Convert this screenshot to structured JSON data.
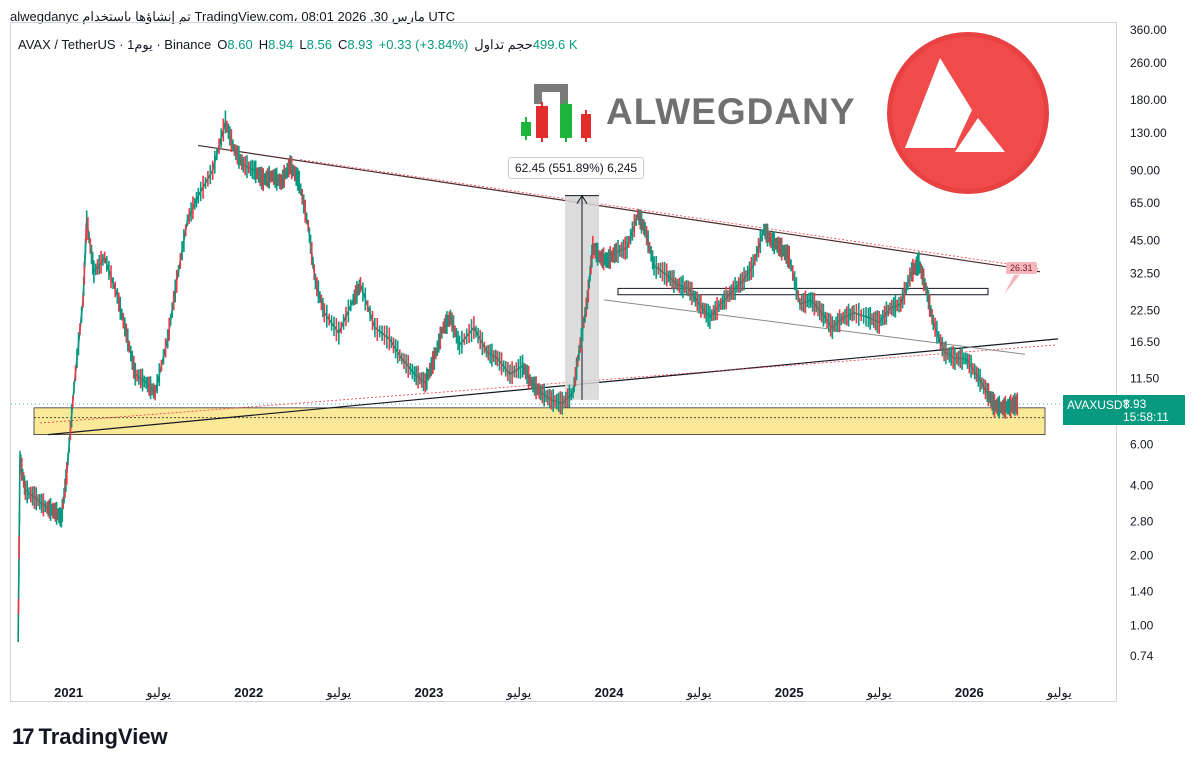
{
  "header": {
    "line": "alwegdanyc تم إنشاؤها باستخدام TradingView.com، 08:01 2026 ,مارس 30 UTC"
  },
  "symbol": {
    "name": "AVAX / TetherUS · 1يوم · Binance",
    "o_label": "O",
    "o": "8.60",
    "h_label": "H",
    "h": "8.94",
    "l_label": "L",
    "l": "8.56",
    "c_label": "C",
    "c": "8.93",
    "change": "+0.33 (+3.84%)",
    "volume_label": "حجم تداول",
    "volume": "499.6 K"
  },
  "brand": {
    "text": "ALWEGDANY"
  },
  "measure": {
    "label": "62.45 (551.89%) 6,245"
  },
  "pink_label": "26.31",
  "price_tag": {
    "name": "AVAXUSDT",
    "value": "8.93",
    "countdown": "15:58:11"
  },
  "footer": {
    "logo_text": "TradingView",
    "logo_mark": "17"
  },
  "colors": {
    "up": "#089981",
    "down": "#f23645",
    "zone": "#fbe99a",
    "measure": "#d6d6d6"
  },
  "chart_data": {
    "type": "line",
    "title": "",
    "xlabel": "",
    "ylabel": "",
    "y_scale": "log",
    "ylim": [
      0.7,
      360
    ],
    "y_ticks": [
      "360.00",
      "260.00",
      "180.00",
      "130.00",
      "90.00",
      "65.00",
      "45.00",
      "32.50",
      "22.50",
      "16.50",
      "11.50",
      "8.00",
      "6.00",
      "4.00",
      "2.80",
      "2.00",
      "1.40",
      "1.00",
      "0.74"
    ],
    "x_ticks": [
      {
        "label": "2021",
        "t": 2021.0,
        "bold": true
      },
      {
        "label": "يوليو",
        "t": 2021.5,
        "bold": false
      },
      {
        "label": "2022",
        "t": 2022.0,
        "bold": true
      },
      {
        "label": "يوليو",
        "t": 2022.5,
        "bold": false
      },
      {
        "label": "2023",
        "t": 2023.0,
        "bold": true
      },
      {
        "label": "يوليو",
        "t": 2023.5,
        "bold": false
      },
      {
        "label": "2024",
        "t": 2024.0,
        "bold": true
      },
      {
        "label": "يوليو",
        "t": 2024.5,
        "bold": false
      },
      {
        "label": "2025",
        "t": 2025.0,
        "bold": true
      },
      {
        "label": "يوليو",
        "t": 2025.5,
        "bold": false
      },
      {
        "label": "2026",
        "t": 2026.0,
        "bold": true
      },
      {
        "label": "يوليو",
        "t": 2026.5,
        "bold": false
      }
    ],
    "xlim": [
      2020.68,
      2026.82
    ],
    "series": [
      {
        "points": [
          [
            2020.72,
            0.9
          ],
          [
            2020.73,
            5.2
          ],
          [
            2020.76,
            3.8
          ],
          [
            2020.82,
            3.5
          ],
          [
            2020.88,
            3.2
          ],
          [
            2020.92,
            3.1
          ],
          [
            2020.96,
            2.9
          ],
          [
            2020.99,
            4.5
          ],
          [
            2021.03,
            10.5
          ],
          [
            2021.08,
            25
          ],
          [
            2021.1,
            55
          ],
          [
            2021.14,
            33
          ],
          [
            2021.2,
            38
          ],
          [
            2021.27,
            26
          ],
          [
            2021.32,
            18
          ],
          [
            2021.37,
            12
          ],
          [
            2021.43,
            11
          ],
          [
            2021.48,
            10
          ],
          [
            2021.55,
            17
          ],
          [
            2021.6,
            30
          ],
          [
            2021.66,
            55
          ],
          [
            2021.72,
            70
          ],
          [
            2021.8,
            90
          ],
          [
            2021.87,
            145
          ],
          [
            2021.92,
            110
          ],
          [
            2021.97,
            95
          ],
          [
            2022.03,
            90
          ],
          [
            2022.08,
            82
          ],
          [
            2022.13,
            85
          ],
          [
            2022.18,
            80
          ],
          [
            2022.23,
            95
          ],
          [
            2022.28,
            80
          ],
          [
            2022.33,
            52
          ],
          [
            2022.37,
            30
          ],
          [
            2022.42,
            22
          ],
          [
            2022.5,
            18
          ],
          [
            2022.58,
            25
          ],
          [
            2022.62,
            29
          ],
          [
            2022.7,
            19
          ],
          [
            2022.78,
            17
          ],
          [
            2022.85,
            14
          ],
          [
            2022.92,
            12
          ],
          [
            2022.98,
            11
          ],
          [
            2023.03,
            14
          ],
          [
            2023.08,
            19
          ],
          [
            2023.12,
            21
          ],
          [
            2023.17,
            16
          ],
          [
            2023.25,
            19
          ],
          [
            2023.32,
            15
          ],
          [
            2023.38,
            14
          ],
          [
            2023.45,
            12
          ],
          [
            2023.52,
            13
          ],
          [
            2023.57,
            11
          ],
          [
            2023.62,
            10
          ],
          [
            2023.68,
            9.3
          ],
          [
            2023.74,
            9.0
          ],
          [
            2023.8,
            10
          ],
          [
            2023.84,
            16
          ],
          [
            2023.88,
            25
          ],
          [
            2023.91,
            42
          ],
          [
            2023.95,
            38
          ],
          [
            2023.99,
            37
          ],
          [
            2024.04,
            40
          ],
          [
            2024.1,
            42
          ],
          [
            2024.16,
            58
          ],
          [
            2024.2,
            50
          ],
          [
            2024.25,
            35
          ],
          [
            2024.32,
            32
          ],
          [
            2024.38,
            29
          ],
          [
            2024.44,
            28
          ],
          [
            2024.5,
            24
          ],
          [
            2024.56,
            21
          ],
          [
            2024.62,
            24
          ],
          [
            2024.68,
            27
          ],
          [
            2024.74,
            30
          ],
          [
            2024.8,
            35
          ],
          [
            2024.86,
            50
          ],
          [
            2024.9,
            45
          ],
          [
            2024.95,
            42
          ],
          [
            2025.0,
            38
          ],
          [
            2025.06,
            24
          ],
          [
            2025.12,
            25
          ],
          [
            2025.18,
            22
          ],
          [
            2025.24,
            19
          ],
          [
            2025.3,
            21
          ],
          [
            2025.36,
            22
          ],
          [
            2025.44,
            21
          ],
          [
            2025.5,
            20
          ],
          [
            2025.56,
            23
          ],
          [
            2025.62,
            24
          ],
          [
            2025.68,
            33
          ],
          [
            2025.72,
            36
          ],
          [
            2025.76,
            28
          ],
          [
            2025.8,
            20
          ],
          [
            2025.86,
            15
          ],
          [
            2025.92,
            14
          ],
          [
            2025.98,
            14
          ],
          [
            2026.04,
            12
          ],
          [
            2026.1,
            10
          ],
          [
            2026.14,
            8.8
          ],
          [
            2026.18,
            8.6
          ],
          [
            2026.22,
            8.7
          ],
          [
            2026.25,
            8.9
          ],
          [
            2026.27,
            8.93
          ]
        ]
      }
    ],
    "current_price": 8.93
  }
}
